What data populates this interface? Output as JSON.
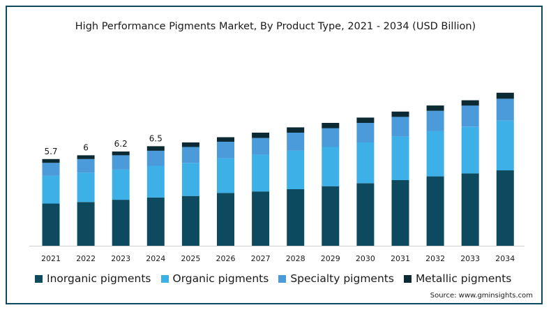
{
  "source": "Source: www.gminsights.com",
  "colors": {
    "frame": "#0d4a5f",
    "inorganic": "#0d4a5f",
    "organic": "#3db0e8",
    "specialty": "#4b9ad9",
    "metallic": "#0c2a33"
  },
  "chart_data": {
    "type": "bar",
    "stacked": true,
    "title": "High Performance Pigments Market, By Product Type, 2021 - 2034 (USD Billion)",
    "xlabel": "",
    "ylabel": "",
    "ylim": [
      0,
      15
    ],
    "grid": false,
    "legend_position": "bottom",
    "categories": [
      "2021",
      "2022",
      "2023",
      "2024",
      "2025",
      "2026",
      "2027",
      "2028",
      "2029",
      "2030",
      "2031",
      "2032",
      "2033",
      "2034"
    ],
    "totals_labels": [
      "5.7",
      "6",
      "6.2",
      "6.5",
      "",
      "",
      "",
      "",
      "",
      "",
      "",
      "",
      "",
      ""
    ],
    "series": [
      {
        "name": "Inorganic pigments",
        "color": "#0d4a5f",
        "values": [
          2.8,
          2.9,
          3.05,
          3.2,
          3.3,
          3.5,
          3.6,
          3.75,
          3.95,
          4.15,
          4.35,
          4.6,
          4.8,
          5.0
        ]
      },
      {
        "name": "Organic pigments",
        "color": "#3db0e8",
        "values": [
          1.85,
          1.95,
          2.0,
          2.1,
          2.2,
          2.3,
          2.45,
          2.55,
          2.6,
          2.7,
          2.9,
          3.0,
          3.1,
          3.3
        ]
      },
      {
        "name": "Specialty pigments",
        "color": "#4b9ad9",
        "values": [
          0.85,
          0.9,
          0.95,
          1.0,
          1.05,
          1.1,
          1.1,
          1.2,
          1.25,
          1.3,
          1.3,
          1.35,
          1.4,
          1.45
        ]
      },
      {
        "name": "Metallic pigments",
        "color": "#0c2a33",
        "values": [
          0.25,
          0.25,
          0.25,
          0.3,
          0.3,
          0.3,
          0.35,
          0.35,
          0.35,
          0.35,
          0.35,
          0.35,
          0.35,
          0.4
        ]
      }
    ]
  }
}
